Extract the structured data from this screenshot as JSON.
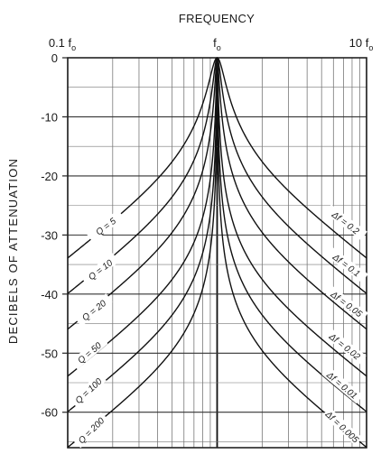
{
  "chart_data": {
    "type": "line",
    "title": "FREQUENCY",
    "ylabel": "DECIBELS OF ATTENUATION",
    "x_scale": "log",
    "xlim": [
      0.1,
      10
    ],
    "ylim": [
      -66,
      0
    ],
    "x_ticks": [
      {
        "value": 0.1,
        "main": "0.1 f",
        "sub": "o"
      },
      {
        "value": 1,
        "main": "f",
        "sub": "o"
      },
      {
        "value": 10,
        "main": "10 f",
        "sub": "o"
      }
    ],
    "y_ticks": [
      0,
      -10,
      -20,
      -30,
      -40,
      -50,
      -60
    ],
    "y_tick_labels": [
      "0",
      "-10",
      "-20",
      "-30",
      "-40",
      "-50",
      "-60"
    ],
    "grid": true,
    "series": [
      {
        "name": "Q = 5",
        "q": 5
      },
      {
        "name": "Q = 10",
        "q": 10
      },
      {
        "name": "Q = 20",
        "q": 20
      },
      {
        "name": "Q = 50",
        "q": 50
      },
      {
        "name": "Q = 100",
        "q": 100
      },
      {
        "name": "Q = 200",
        "q": 200
      }
    ],
    "right_labels": [
      "Δf = 0.2",
      "Δf = 0.1",
      "Δf = 0.05",
      "Δf = 0.02",
      "Δf = 0.01",
      "Δf = 0.005"
    ]
  }
}
